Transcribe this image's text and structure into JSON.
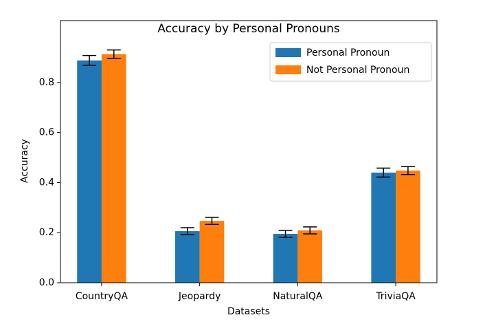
{
  "chart_data": {
    "type": "bar",
    "title": "Accuracy by Personal Pronouns",
    "x_label": "Datasets",
    "y_label": "Accuracy",
    "categories": [
      "CountryQA",
      "Jeopardy",
      "NaturalQA",
      "TriviaQA"
    ],
    "series": [
      {
        "name": "Personal Pronoun",
        "color": "#1f77b4",
        "values": [
          0.888,
          0.206,
          0.195,
          0.44
        ],
        "errors": [
          0.02,
          0.014,
          0.014,
          0.018
        ]
      },
      {
        "name": "Not Personal Pronoun",
        "color": "#ff7f0e",
        "values": [
          0.913,
          0.247,
          0.209,
          0.448
        ],
        "errors": [
          0.017,
          0.014,
          0.014,
          0.016
        ]
      }
    ],
    "ylim": [
      0,
      1.047
    ],
    "yticks": [
      {
        "value": 0,
        "label": "0.0"
      },
      {
        "value": 0.2,
        "label": "0.2"
      },
      {
        "value": 0.4,
        "label": "0.4"
      },
      {
        "value": 0.6,
        "label": "0.6"
      },
      {
        "value": 0.8,
        "label": "0.8"
      }
    ],
    "legend": "upper right",
    "grid": false
  }
}
